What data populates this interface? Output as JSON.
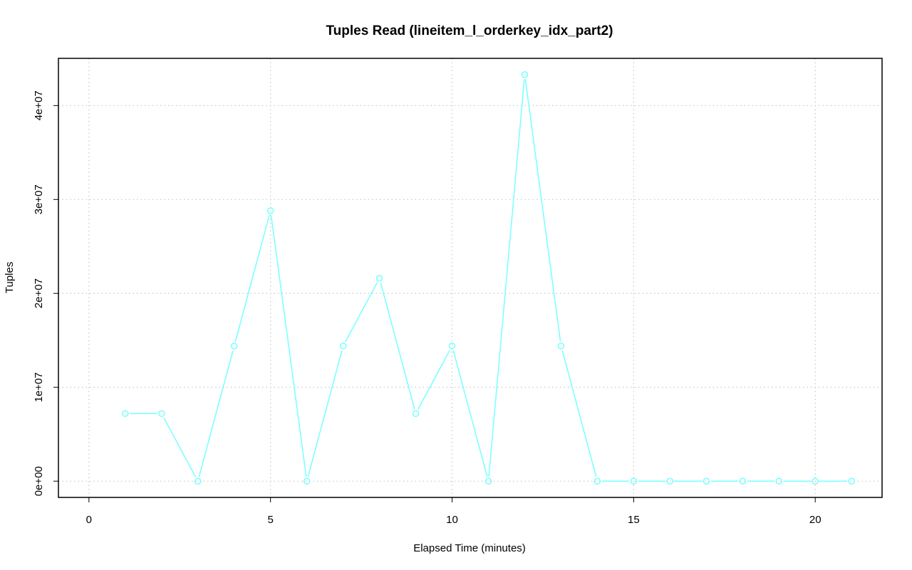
{
  "chart_data": {
    "type": "line",
    "title": "Tuples Read (lineitem_l_orderkey_idx_part2)",
    "xlabel": "Elapsed Time (minutes)",
    "ylabel": "Tuples",
    "xlim": [
      -0.84,
      21.84
    ],
    "ylim": [
      -1730000,
      45030000
    ],
    "x_ticks": [
      0,
      5,
      10,
      15,
      20
    ],
    "x_tick_labels": [
      "0",
      "5",
      "10",
      "15",
      "20"
    ],
    "y_ticks": [
      0,
      10000000,
      20000000,
      30000000,
      40000000
    ],
    "y_tick_labels": [
      "0e+00",
      "1e+07",
      "2e+07",
      "3e+07",
      "4e+07"
    ],
    "grid": true,
    "series": [
      {
        "color": "#7fffff",
        "marker": "circle-open",
        "x": [
          1,
          2,
          3,
          4,
          5,
          6,
          7,
          8,
          9,
          10,
          11,
          12,
          13,
          14,
          15,
          16,
          17,
          18,
          19,
          20,
          21
        ],
        "y": [
          7200000,
          7200000,
          0,
          14400000,
          28800000,
          0,
          14400000,
          21600000,
          7200000,
          14400000,
          0,
          43300000,
          14400000,
          0,
          0,
          0,
          0,
          0,
          0,
          0,
          0
        ]
      }
    ]
  }
}
